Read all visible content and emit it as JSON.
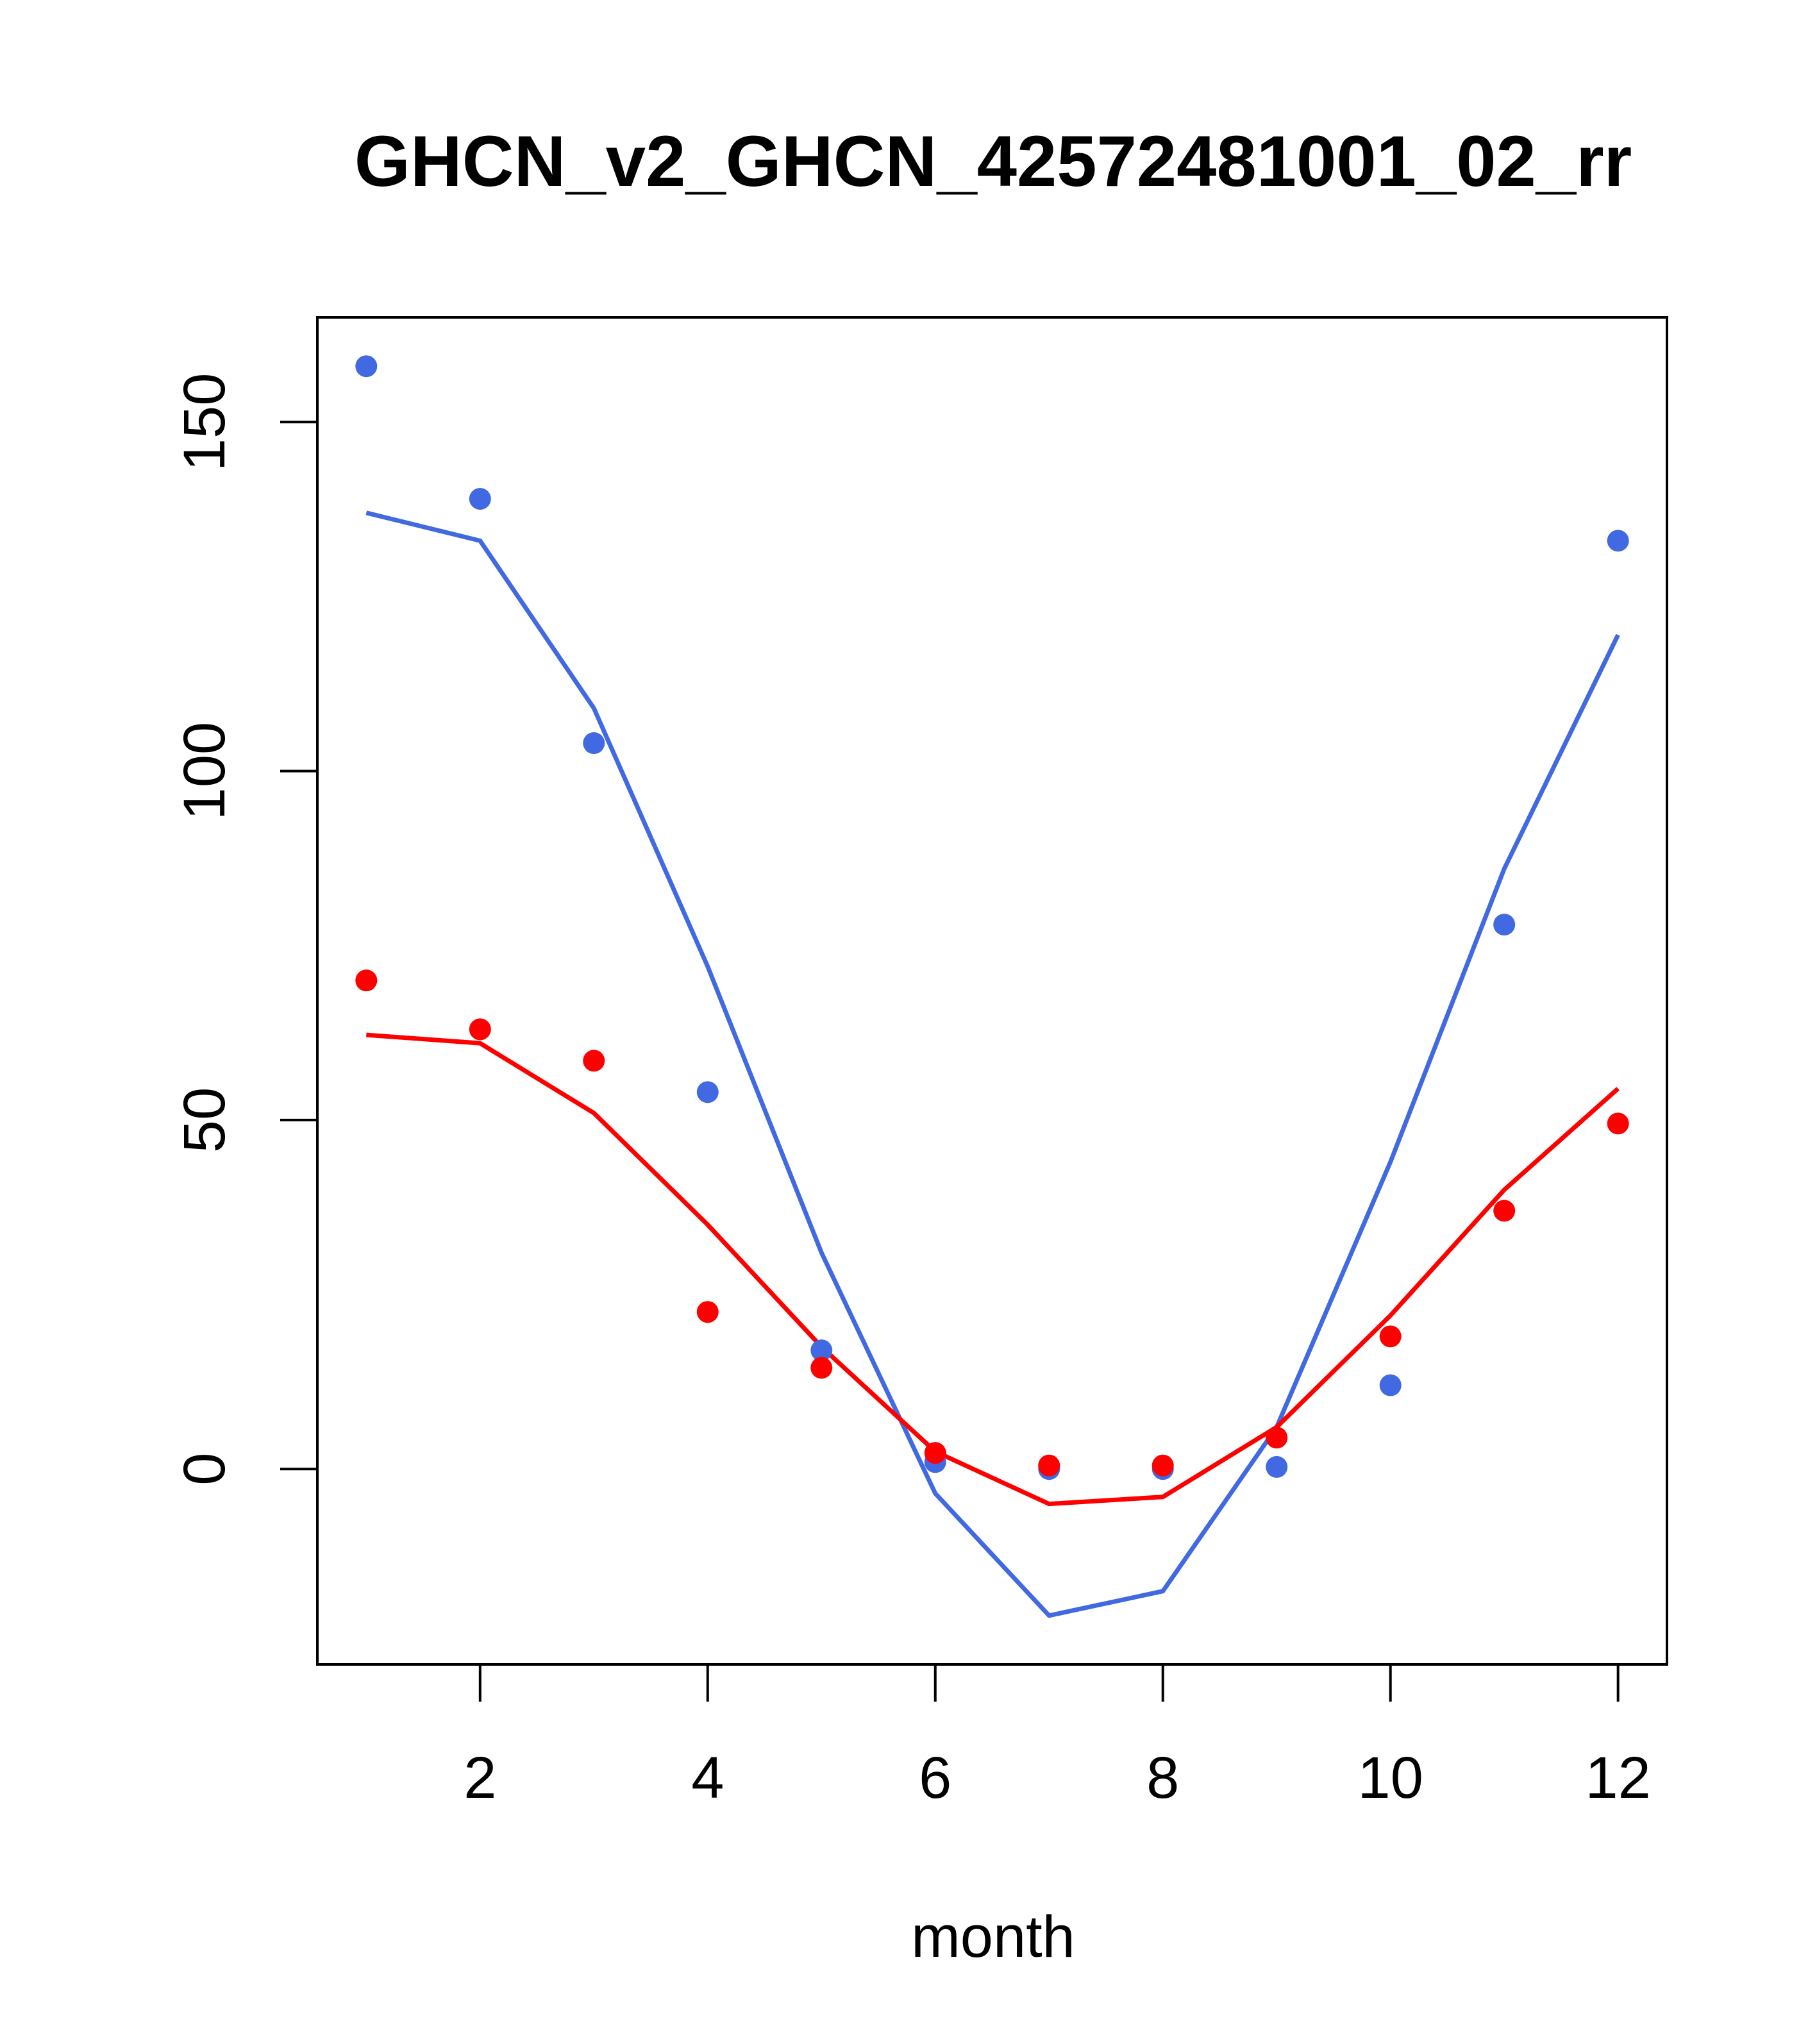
{
  "chart_data": {
    "type": "line",
    "title": "GHCN_v2_GHCN_42572481001_02_rr",
    "xlabel": "month",
    "ylabel": "",
    "xlim": [
      0.57,
      12.43
    ],
    "ylim": [
      -28,
      165
    ],
    "x_ticks": [
      2,
      4,
      6,
      8,
      10,
      12
    ],
    "y_ticks": [
      0,
      50,
      100,
      150
    ],
    "grid": false,
    "legend": "none",
    "x": [
      1,
      2,
      3,
      4,
      5,
      6,
      7,
      8,
      9,
      10,
      11,
      12
    ],
    "series": [
      {
        "color": "#4169E1",
        "points": [
          158,
          139,
          104,
          54,
          17,
          1,
          0,
          0,
          0.3,
          12,
          78,
          133
        ],
        "line": [
          137,
          133,
          109,
          72,
          31,
          -3.5,
          -21,
          -17.5,
          6,
          44,
          86,
          119.5
        ]
      },
      {
        "color": "#FF0000",
        "points": [
          70,
          63,
          58.5,
          22.5,
          14.5,
          2.3,
          0.5,
          0.5,
          4.5,
          19,
          37,
          49.5
        ],
        "line": [
          62.2,
          61,
          51,
          35,
          17.5,
          2.5,
          -5,
          -4,
          6,
          22,
          40,
          54.5
        ]
      }
    ]
  }
}
